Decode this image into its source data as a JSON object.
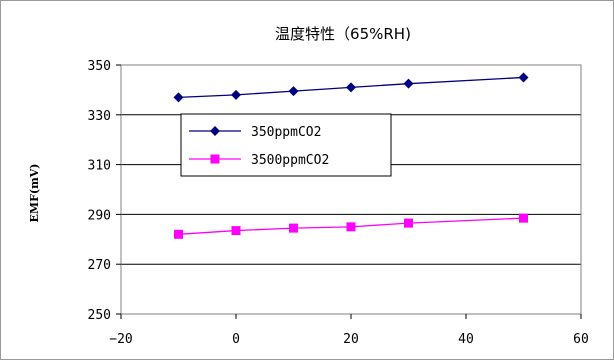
{
  "chart_data": {
    "type": "line",
    "title": "温度特性（65%RH)",
    "xlabel": "",
    "ylabel": "EMF(mV)",
    "xlim": [
      -20,
      60
    ],
    "ylim": [
      250,
      350
    ],
    "xticks": [
      -20,
      0,
      20,
      40,
      60
    ],
    "yticks": [
      250,
      270,
      290,
      310,
      330,
      350
    ],
    "grid": "horizontal",
    "legend_position": "center-left",
    "series": [
      {
        "name": "350ppmCO2",
        "color": "#000080",
        "marker": "diamond",
        "x": [
          -10,
          0,
          10,
          20,
          30,
          50
        ],
        "y": [
          337,
          338,
          339.5,
          341,
          342.5,
          345
        ]
      },
      {
        "name": "3500ppmCO2",
        "color": "#ff00ff",
        "marker": "square",
        "x": [
          -10,
          0,
          10,
          20,
          30,
          50
        ],
        "y": [
          282,
          283.5,
          284.5,
          285,
          286.5,
          288.5
        ]
      }
    ]
  }
}
